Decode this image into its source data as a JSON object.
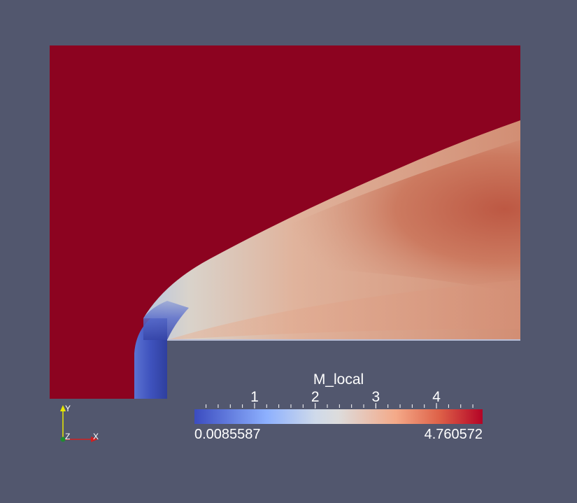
{
  "colors": {
    "background": "#52576e",
    "field_high": "#8c0320",
    "field_low": "#3b4cc0",
    "field_mid": "#dddcdb",
    "jet_core": "#c45a43",
    "jet_body": "#d8a48c"
  },
  "colorbar": {
    "title": "M_local",
    "min_label": "0.0085587",
    "max_label": "4.760572",
    "range": [
      0.0085587,
      4.760572
    ],
    "tick_values": [
      1,
      2,
      3,
      4
    ],
    "tick_labels": [
      "1",
      "2",
      "3",
      "4"
    ]
  },
  "axes_triad": {
    "x_label": "X",
    "y_label": "Y",
    "z_label": "Z"
  }
}
